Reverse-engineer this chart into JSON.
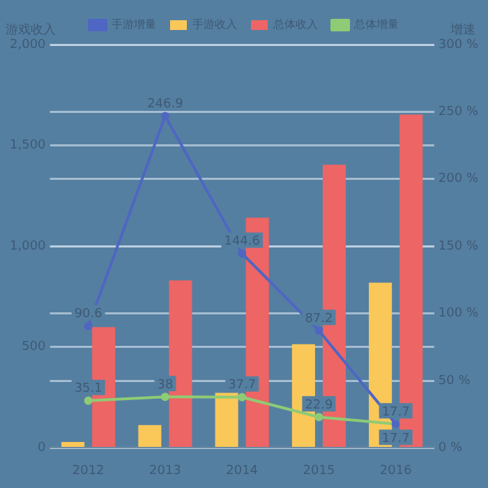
{
  "chart_data": {
    "type": "bar",
    "categories": [
      "2012",
      "2013",
      "2014",
      "2015",
      "2016"
    ],
    "ylabel": "游戏收入",
    "y2label": "增速",
    "ylim": [
      0,
      2000
    ],
    "yticks": [
      {
        "value": 0,
        "label": "0"
      },
      {
        "value": 500,
        "label": "500"
      },
      {
        "value": 1000,
        "label": "1,000"
      },
      {
        "value": 1500,
        "label": "1,500"
      },
      {
        "value": 2000,
        "label": "2,000"
      }
    ],
    "y2lim": [
      0,
      300
    ],
    "y2ticks": [
      {
        "value": 0,
        "label": "0 %"
      },
      {
        "value": 50,
        "label": "50 %"
      },
      {
        "value": 100,
        "label": "100 %"
      },
      {
        "value": 150,
        "label": "150 %"
      },
      {
        "value": 200,
        "label": "200 %"
      },
      {
        "value": 250,
        "label": "250 %"
      },
      {
        "value": 300,
        "label": "300 %"
      }
    ],
    "grid": "y",
    "legend": "top",
    "marker": "circle",
    "series": [
      {
        "name": "手游增量",
        "type": "line",
        "axis": "y2",
        "color": "#4f66c2",
        "values": [
          90.6,
          246.9,
          144.6,
          87.2,
          17.7
        ],
        "value_labels": [
          "90.6",
          "246.9",
          "144.6",
          "87.2",
          "17.7"
        ]
      },
      {
        "name": "手游收入",
        "color": "#f9c858",
        "values": [
          29,
          113,
          273,
          514,
          819
        ]
      },
      {
        "name": "总体收入",
        "color": "#ee6565",
        "values": [
          599,
          830,
          1142,
          1404,
          1653
        ]
      },
      {
        "name": "总体增量",
        "type": "line",
        "axis": "y2",
        "color": "#8fcb74",
        "values": [
          35.1,
          38,
          37.7,
          22.9,
          17.7
        ],
        "value_labels": [
          "35.1",
          "38",
          "37.7",
          "22.9",
          "17.7"
        ]
      }
    ]
  }
}
